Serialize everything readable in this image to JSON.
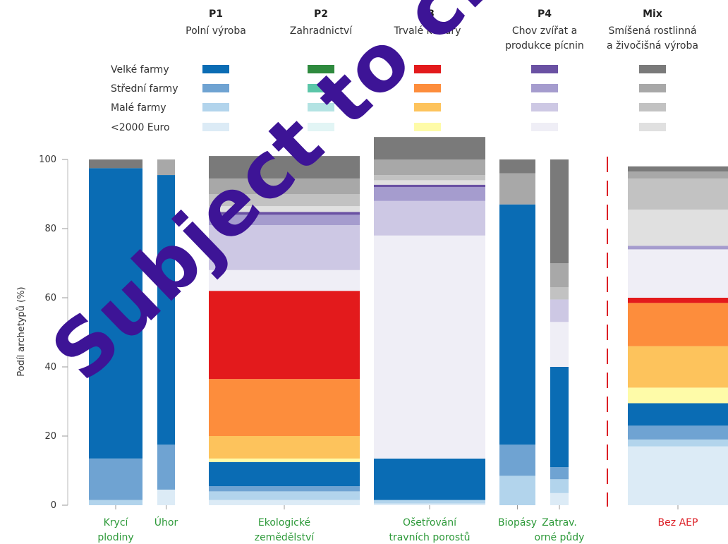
{
  "legend": {
    "groups": [
      {
        "code": "P1",
        "name": [
          "Polní výroba"
        ]
      },
      {
        "code": "P2",
        "name": [
          "Zahradnictví"
        ]
      },
      {
        "code": "P3",
        "name": [
          "Trvalé kultury"
        ]
      },
      {
        "code": "P4",
        "name": [
          "Chov zvířat a",
          "produkce pícnin"
        ]
      },
      {
        "code": "Mix",
        "name": [
          "Smíšená rostlinná",
          "a živočišná výroba"
        ]
      }
    ],
    "sizes": [
      "Velké farmy",
      "Střední farmy",
      "Malé farmy",
      "<2000 Euro"
    ],
    "colors": [
      [
        "#0a6cb4",
        "#6fa3d2",
        "#b2d4ec",
        "#dcebf6"
      ],
      [
        "#2e8a3e",
        "#5bc6a8",
        "#b3e3e3",
        "#e2f5f5"
      ],
      [
        "#e31a1c",
        "#fd8d3c",
        "#fdc35c",
        "#fefba8"
      ],
      [
        "#6a51a3",
        "#a59cce",
        "#cdc8e4",
        "#efeef6"
      ],
      [
        "#7a7a7a",
        "#a8a8a8",
        "#c2c2c2",
        "#e0e0e0"
      ]
    ]
  },
  "chart_data": {
    "type": "bar",
    "stacked": true,
    "ylabel": "Podíl archetypů (%)",
    "ylim": [
      0,
      100
    ],
    "yticks": [
      0,
      20,
      40,
      60,
      80,
      100
    ],
    "categories": [
      [
        "Krycí",
        "plodiny"
      ],
      [
        "Úhor"
      ],
      [
        "Ekologické",
        "zemědělství"
      ],
      [
        "Ošetřování",
        "travních porostů"
      ],
      [
        "Biopásy"
      ],
      [
        "Zatrav.",
        "orné půdy"
      ],
      [
        "Bez AEP"
      ]
    ],
    "series_order_bottom_to_top": [
      "P1 <2000 Euro",
      "P1 Malé farmy",
      "P1 Střední farmy",
      "P1 Velké farmy",
      "P2 <2000 Euro",
      "P2 Malé farmy",
      "P2 Střední farmy",
      "P2 Velké farmy",
      "P3 <2000 Euro",
      "P3 Malé farmy",
      "P3 Střední farmy",
      "P3 Velké farmy",
      "P4 <2000 Euro",
      "P4 Malé farmy",
      "P4 Střední farmy",
      "P4 Velké farmy",
      "Mix <2000 Euro",
      "Mix Malé farmy",
      "Mix Střední farmy",
      "Mix Velké farmy"
    ],
    "stacks": [
      [
        {
          "g": 0,
          "s": 3,
          "v": 0
        },
        {
          "g": 0,
          "s": 2,
          "v": 1.5
        },
        {
          "g": 0,
          "s": 1,
          "v": 12
        },
        {
          "g": 0,
          "s": 0,
          "v": 84
        },
        {
          "g": 4,
          "s": 0,
          "v": 2.5
        }
      ],
      [
        {
          "g": 0,
          "s": 3,
          "v": 4.5
        },
        {
          "g": 0,
          "s": 1,
          "v": 13
        },
        {
          "g": 0,
          "s": 0,
          "v": 78
        },
        {
          "g": 4,
          "s": 1,
          "v": 4.5
        }
      ],
      [
        {
          "g": 0,
          "s": 3,
          "v": 1.5
        },
        {
          "g": 0,
          "s": 2,
          "v": 2.5
        },
        {
          "g": 0,
          "s": 1,
          "v": 1.5
        },
        {
          "g": 0,
          "s": 0,
          "v": 7
        },
        {
          "g": 2,
          "s": 3,
          "v": 1
        },
        {
          "g": 2,
          "s": 2,
          "v": 6.5
        },
        {
          "g": 2,
          "s": 1,
          "v": 16.5
        },
        {
          "g": 2,
          "s": 0,
          "v": 25.5
        },
        {
          "g": 3,
          "s": 3,
          "v": 6
        },
        {
          "g": 3,
          "s": 2,
          "v": 13
        },
        {
          "g": 3,
          "s": 1,
          "v": 3
        },
        {
          "g": 3,
          "s": 0,
          "v": 0.8
        },
        {
          "g": 4,
          "s": 3,
          "v": 1.7
        },
        {
          "g": 4,
          "s": 2,
          "v": 3.5
        },
        {
          "g": 4,
          "s": 1,
          "v": 4.5
        },
        {
          "g": 4,
          "s": 0,
          "v": 6.5
        }
      ],
      [
        {
          "g": 0,
          "s": 3,
          "v": 0.5
        },
        {
          "g": 0,
          "s": 2,
          "v": 1
        },
        {
          "g": 0,
          "s": 0,
          "v": 12
        },
        {
          "g": 3,
          "s": 3,
          "v": 64.5
        },
        {
          "g": 3,
          "s": 2,
          "v": 10
        },
        {
          "g": 3,
          "s": 1,
          "v": 4
        },
        {
          "g": 3,
          "s": 0,
          "v": 0.7
        },
        {
          "g": 4,
          "s": 3,
          "v": 1.3
        },
        {
          "g": 4,
          "s": 2,
          "v": 1.5
        },
        {
          "g": 4,
          "s": 1,
          "v": 4.5
        },
        {
          "g": 4,
          "s": 0,
          "v": 6.5
        }
      ],
      [
        {
          "g": 0,
          "s": 2,
          "v": 8.5
        },
        {
          "g": 0,
          "s": 1,
          "v": 9
        },
        {
          "g": 0,
          "s": 0,
          "v": 69.5
        },
        {
          "g": 4,
          "s": 1,
          "v": 9
        },
        {
          "g": 4,
          "s": 0,
          "v": 4
        }
      ],
      [
        {
          "g": 0,
          "s": 3,
          "v": 3.5
        },
        {
          "g": 0,
          "s": 2,
          "v": 4
        },
        {
          "g": 0,
          "s": 1,
          "v": 3.5
        },
        {
          "g": 0,
          "s": 0,
          "v": 29
        },
        {
          "g": 3,
          "s": 3,
          "v": 13
        },
        {
          "g": 3,
          "s": 2,
          "v": 6.5
        },
        {
          "g": 4,
          "s": 2,
          "v": 3.5
        },
        {
          "g": 4,
          "s": 1,
          "v": 7
        },
        {
          "g": 4,
          "s": 0,
          "v": 30
        }
      ],
      [
        {
          "g": 0,
          "s": 3,
          "v": 17
        },
        {
          "g": 0,
          "s": 2,
          "v": 2
        },
        {
          "g": 0,
          "s": 1,
          "v": 4
        },
        {
          "g": 0,
          "s": 0,
          "v": 6.5
        },
        {
          "g": 2,
          "s": 3,
          "v": 4.5
        },
        {
          "g": 2,
          "s": 2,
          "v": 12
        },
        {
          "g": 2,
          "s": 1,
          "v": 12.5
        },
        {
          "g": 2,
          "s": 0,
          "v": 1.5
        },
        {
          "g": 3,
          "s": 3,
          "v": 14
        },
        {
          "g": 3,
          "s": 1,
          "v": 1
        },
        {
          "g": 4,
          "s": 3,
          "v": 10.5
        },
        {
          "g": 4,
          "s": 2,
          "v": 9
        },
        {
          "g": 4,
          "s": 1,
          "v": 2
        },
        {
          "g": 4,
          "s": 0,
          "v": 1.5
        }
      ]
    ]
  },
  "watermark": "Subject to change"
}
